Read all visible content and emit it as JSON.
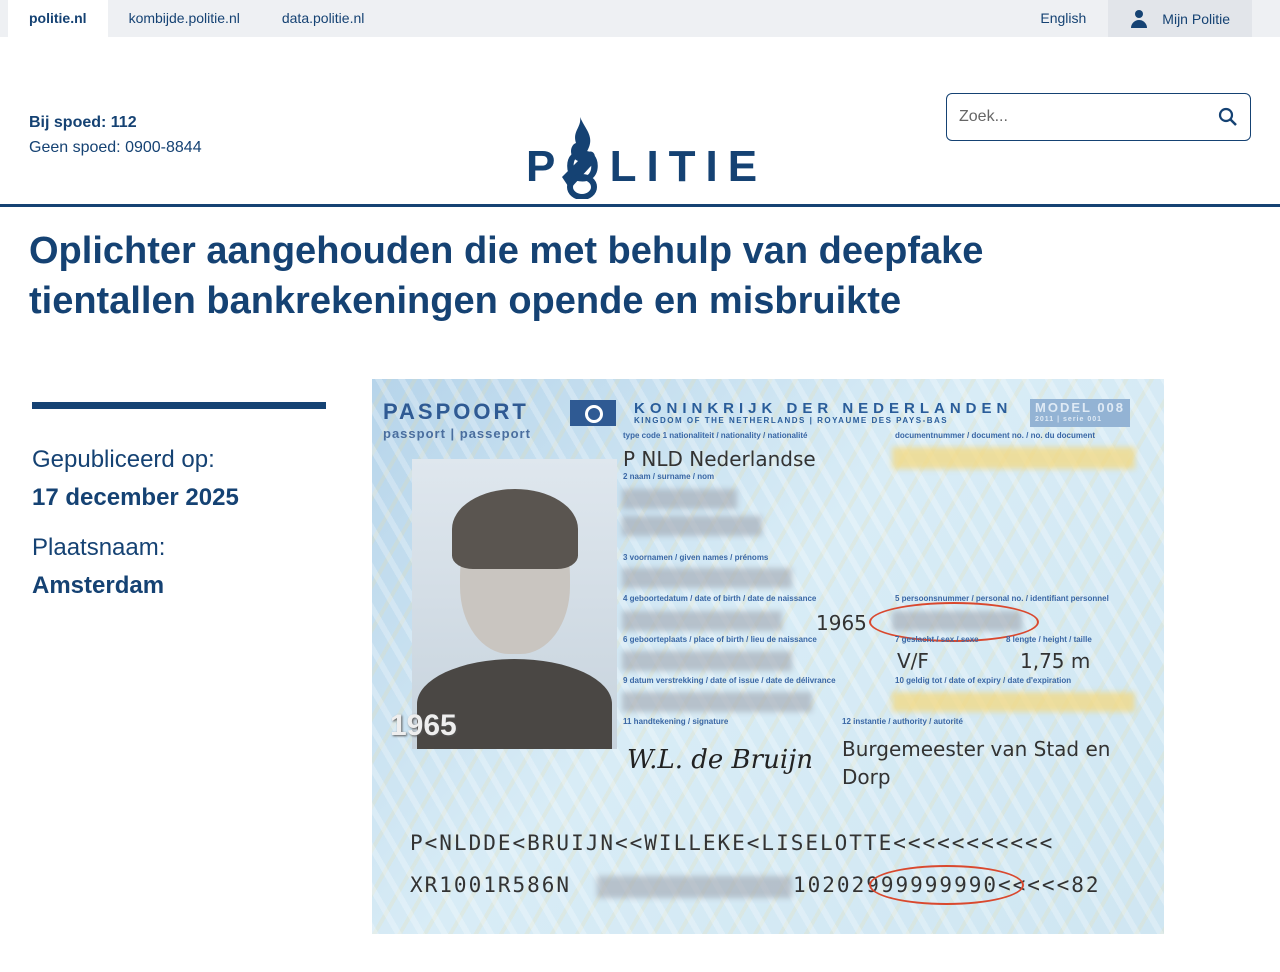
{
  "topbar": {
    "tabs": [
      "politie.nl",
      "kombijde.politie.nl",
      "data.politie.nl"
    ],
    "english": "English",
    "mijn_politie": "Mijn Politie"
  },
  "header": {
    "emergency": "Bij spoed: 112",
    "non_emergency": "Geen spoed: 0900-8844",
    "logo_text": "POLITIE",
    "search_placeholder": "Zoek..."
  },
  "article": {
    "title": "Oplichter aangehouden die met behulp van deepfake tientallen bankrekeningen opende en misbruikte",
    "published_label": "Gepubliceerd op:",
    "published_value": "17 december 2025",
    "place_label": "Plaatsnaam:",
    "place_value": "Amsterdam"
  },
  "passport": {
    "title": "PASPOORT",
    "subtitle": "passport | passeport",
    "kingdom": "KONINKRIJK DER NEDERLANDEN",
    "kingdom_sub": "KINGDOM OF THE NETHERLANDS | ROYAUME DES PAYS-BAS",
    "model": "MODEL 008",
    "model_sub": "2011 | serie 001",
    "labels": {
      "type_code": "type   code   1 nationaliteit / nationality / nationalité",
      "docnr": "documentnummer / document no. / no. du document",
      "surname": "2 naam / surname / nom",
      "given": "3 voornamen / given names / prénoms",
      "dob": "4 geboortedatum / date of birth / date de naissance",
      "personal": "5 persoonsnummer / personal no. / identifiant personnel",
      "pob": "6 geboorteplaats / place of birth / lieu de naissance",
      "sex": "7 geslacht / sex / sexe",
      "height": "8 lengte / height / taille",
      "issue": "9 datum verstrekking / date of issue / date de délivrance",
      "expiry": "10 geldig tot / date of expiry / date d'expiration",
      "signature": "11 handtekening / signature",
      "authority": "12 instantie / authority / autorité"
    },
    "type_nat": "P  NLD  Nederlandse",
    "dob_year": "1965",
    "sex": "V/F",
    "height": "1,75 m",
    "authority": "Burgemeester van Stad en Dorp",
    "ghost_year": "1965",
    "signature": "W.L. de Bruijn",
    "mrz1": "P<NLDDE<BRUIJN<<WILLEKE<LISELOTTE<<<<<<<<<<<",
    "mrz2_a": "XR1001R586N",
    "mrz2_b": "10202999999990<<<<<82"
  }
}
